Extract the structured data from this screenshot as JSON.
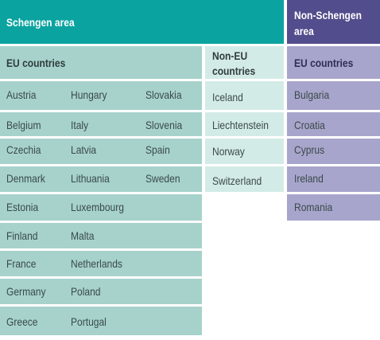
{
  "headers": {
    "schengen": "Schengen area",
    "non_schengen_line1": "Non-Schengen",
    "non_schengen_line2": "area",
    "eu_countries": "EU countries",
    "non_eu_line1": "Non-EU",
    "non_eu_line2": "countries",
    "eu_countries_non_schengen": "EU countries"
  },
  "schengen_eu": {
    "col1": [
      "Austria",
      "Belgium",
      "Czechia",
      "Denmark",
      "Estonia",
      "Finland",
      "France",
      "Germany",
      "Greece"
    ],
    "col2": [
      "Hungary",
      "Italy",
      "Latvia",
      "Lithuania",
      "Luxembourg",
      "Malta",
      "Netherlands",
      "Poland",
      "Portugal"
    ],
    "col3": [
      "Slovakia",
      "Slovenia",
      "Spain",
      "Sweden"
    ]
  },
  "schengen_non_eu": [
    "Iceland",
    "Liechtenstein",
    "Norway",
    "Switzerland"
  ],
  "non_schengen_eu": [
    "Bulgaria",
    "Croatia",
    "Cyprus",
    "Ireland",
    "Romania"
  ],
  "colors": {
    "schengen_header": "#0aa3a0",
    "non_schengen_header": "#524d8c",
    "eu_fill": "#a6d2cb",
    "non_eu_fill": "#d3ebe7",
    "non_schengen_fill": "#a8a5cc"
  }
}
